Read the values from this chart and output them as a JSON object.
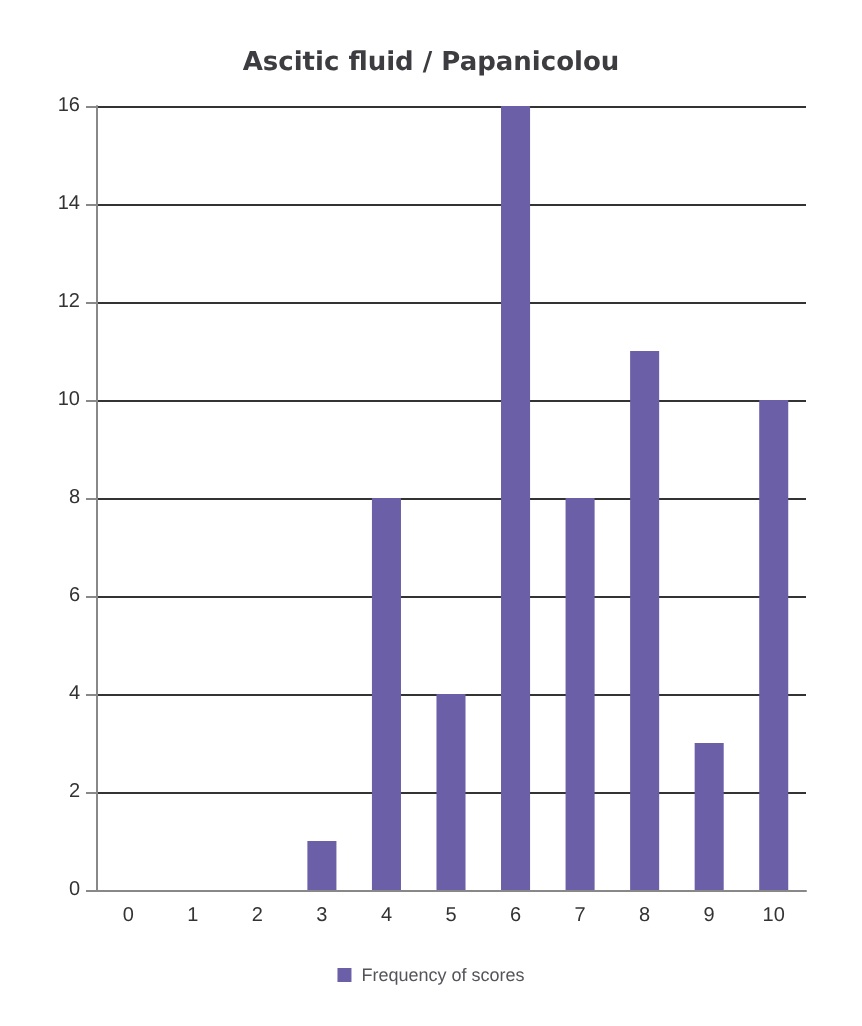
{
  "chart_data": {
    "type": "bar",
    "title": "Ascitic fluid / Papanicolou",
    "categories": [
      "0",
      "1",
      "2",
      "3",
      "4",
      "5",
      "6",
      "7",
      "8",
      "9",
      "10"
    ],
    "series": [
      {
        "name": "Frequency of scores",
        "color": "#6b5fa8",
        "values": [
          0,
          0,
          0,
          1,
          8,
          4,
          16,
          8,
          11,
          3,
          10
        ]
      }
    ],
    "ylim": [
      0,
      16
    ],
    "yticks": [
      0,
      2,
      4,
      6,
      8,
      10,
      12,
      14,
      16
    ],
    "grid": "y",
    "legend": "bottom"
  }
}
